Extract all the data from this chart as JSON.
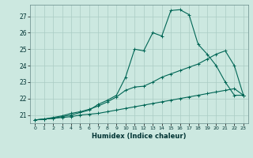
{
  "xlabel": "Humidex (Indice chaleur)",
  "background_color": "#cce8e0",
  "grid_color": "#aaccc4",
  "line_color": "#006655",
  "xlim": [
    -0.5,
    23.5
  ],
  "ylim": [
    20.5,
    27.7
  ],
  "yticks": [
    21,
    22,
    23,
    24,
    25,
    26,
    27
  ],
  "xticks": [
    0,
    1,
    2,
    3,
    4,
    5,
    6,
    7,
    8,
    9,
    10,
    11,
    12,
    13,
    14,
    15,
    16,
    17,
    18,
    19,
    20,
    21,
    22,
    23
  ],
  "line_bottom_x": [
    0,
    1,
    2,
    3,
    4,
    5,
    6,
    7,
    8,
    9,
    10,
    11,
    12,
    13,
    14,
    15,
    16,
    17,
    18,
    19,
    20,
    21,
    22,
    23
  ],
  "line_bottom_y": [
    20.7,
    20.75,
    20.8,
    20.85,
    20.9,
    21.0,
    21.05,
    21.1,
    21.2,
    21.3,
    21.4,
    21.5,
    21.6,
    21.7,
    21.8,
    21.9,
    22.0,
    22.1,
    22.2,
    22.3,
    22.4,
    22.5,
    22.6,
    22.2
  ],
  "line_middle_x": [
    0,
    1,
    2,
    3,
    4,
    5,
    6,
    7,
    8,
    9,
    10,
    11,
    12,
    13,
    14,
    15,
    16,
    17,
    18,
    19,
    20,
    21,
    22,
    23
  ],
  "line_middle_y": [
    20.7,
    20.75,
    20.85,
    20.95,
    21.1,
    21.2,
    21.35,
    21.55,
    21.8,
    22.1,
    22.5,
    22.7,
    22.75,
    23.0,
    23.3,
    23.5,
    23.7,
    23.9,
    24.1,
    24.4,
    24.7,
    24.9,
    24.0,
    22.2
  ],
  "line_top_x": [
    0,
    1,
    2,
    3,
    4,
    5,
    6,
    7,
    8,
    9,
    10,
    11,
    12,
    13,
    14,
    15,
    16,
    17,
    18,
    19,
    20,
    21,
    22,
    23
  ],
  "line_top_y": [
    20.7,
    20.75,
    20.8,
    20.9,
    21.0,
    21.15,
    21.3,
    21.65,
    21.9,
    22.2,
    23.3,
    25.0,
    24.9,
    26.0,
    25.8,
    27.35,
    27.4,
    27.1,
    25.3,
    24.7,
    24.0,
    23.0,
    22.2,
    22.2
  ]
}
